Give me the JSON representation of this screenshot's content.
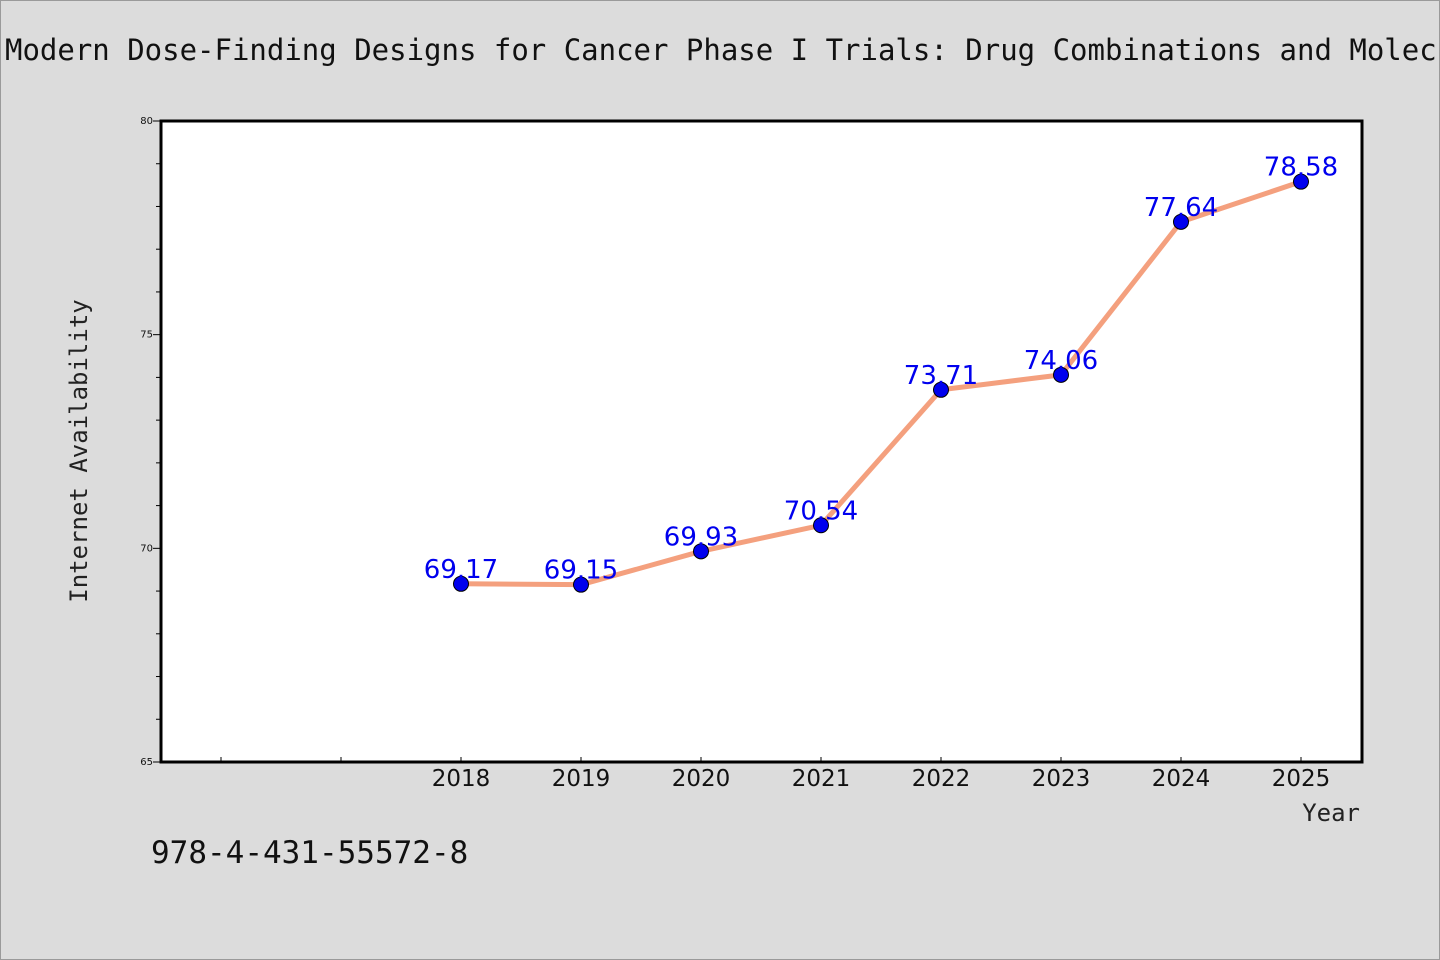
{
  "page": {
    "title": "Modern Dose-Finding Designs for Cancer Phase I Trials: Drug Combinations and Molecular Targeted Agents",
    "isbn": "978-4-431-55572-8"
  },
  "chart_data": {
    "type": "line",
    "title": "Modern Dose-Finding Designs for Cancer Phase I Trials: Drug Combinations and Molecular Targeted Agents",
    "xlabel": "Year",
    "ylabel": "Internet Availability",
    "categories": [
      "2018",
      "2019",
      "2020",
      "2021",
      "2022",
      "2023",
      "2024",
      "2025"
    ],
    "series": [
      {
        "values": [
          69.17,
          69.15,
          69.93,
          70.54,
          73.71,
          74.06,
          77.64,
          78.58
        ],
        "labels": [
          "69.17",
          "69.15",
          "69.93",
          "70.54",
          "73.71",
          "74.06",
          "77.64",
          "78.58"
        ],
        "line_color": "#f4a07e",
        "marker_color": "#0000ee"
      }
    ],
    "ylim": [
      65,
      80
    ],
    "yticks": [
      "65",
      "70",
      "75",
      "80"
    ],
    "xlim_categories": [
      "2016",
      "2017",
      "2018",
      "2019",
      "2020",
      "2021",
      "2022",
      "2023",
      "2024",
      "2025"
    ],
    "grid": false,
    "legend": "none",
    "background": "#ffffff",
    "figure_background": "#dcdcdc"
  }
}
